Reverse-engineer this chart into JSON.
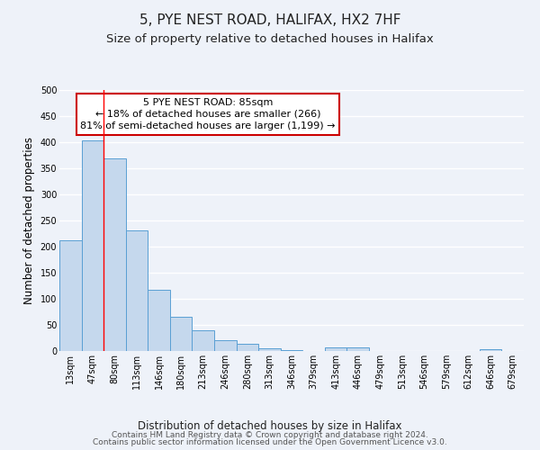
{
  "title": "5, PYE NEST ROAD, HALIFAX, HX2 7HF",
  "subtitle": "Size of property relative to detached houses in Halifax",
  "xlabel": "Distribution of detached houses by size in Halifax",
  "ylabel": "Number of detached properties",
  "categories": [
    "13sqm",
    "47sqm",
    "80sqm",
    "113sqm",
    "146sqm",
    "180sqm",
    "213sqm",
    "246sqm",
    "280sqm",
    "313sqm",
    "346sqm",
    "379sqm",
    "413sqm",
    "446sqm",
    "479sqm",
    "513sqm",
    "546sqm",
    "579sqm",
    "612sqm",
    "646sqm",
    "679sqm"
  ],
  "values": [
    212,
    403,
    369,
    231,
    118,
    65,
    39,
    21,
    14,
    5,
    1,
    0,
    7,
    7,
    0,
    0,
    0,
    0,
    0,
    3,
    0
  ],
  "bar_color": "#c5d8ed",
  "bar_edge_color": "#5a9fd4",
  "red_line_index": 2,
  "annotation_text": "5 PYE NEST ROAD: 85sqm\n← 18% of detached houses are smaller (266)\n81% of semi-detached houses are larger (1,199) →",
  "annotation_box_color": "#ffffff",
  "annotation_box_edge_color": "#cc0000",
  "footnote_line1": "Contains HM Land Registry data © Crown copyright and database right 2024.",
  "footnote_line2": "Contains public sector information licensed under the Open Government Licence v3.0.",
  "ylim": [
    0,
    500
  ],
  "yticks": [
    0,
    50,
    100,
    150,
    200,
    250,
    300,
    350,
    400,
    450,
    500
  ],
  "background_color": "#eef2f9",
  "grid_color": "#ffffff",
  "title_fontsize": 11,
  "subtitle_fontsize": 9.5,
  "axis_label_fontsize": 8.5,
  "tick_fontsize": 7,
  "footnote_fontsize": 6.5,
  "annotation_fontsize": 8
}
